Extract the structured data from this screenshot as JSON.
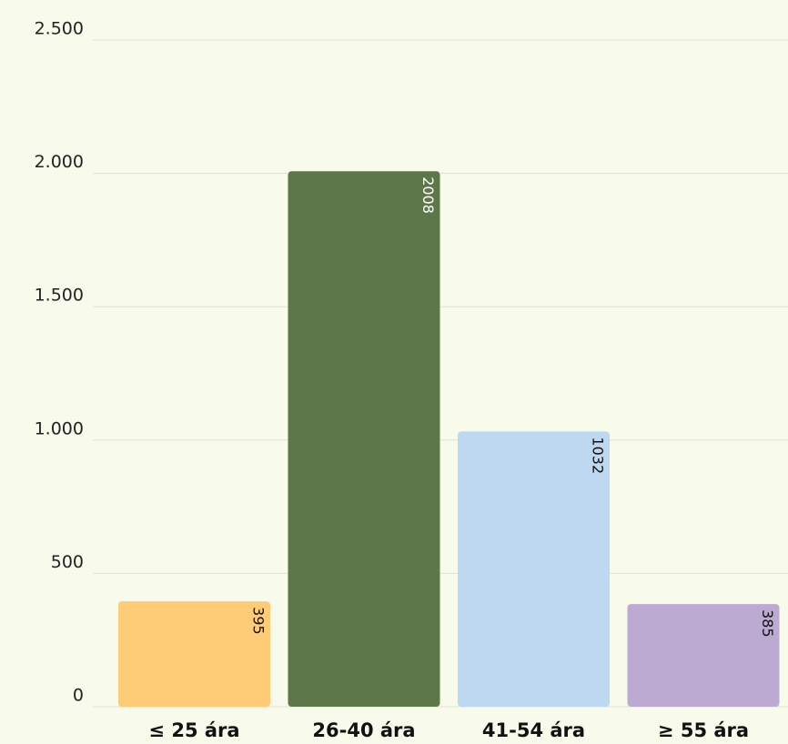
{
  "chart_data": {
    "type": "bar",
    "categories": [
      "≤ 25 ára",
      "26-40 ára",
      "41-54 ára",
      "≥ 55 ára"
    ],
    "values": [
      395,
      2008,
      1032,
      385
    ],
    "colors": [
      "#fecb77",
      "#5e774a",
      "#bdd8f0",
      "#bcaad3"
    ],
    "ylim": [
      0,
      2500
    ],
    "yticks": [
      0,
      500,
      {
        "value": 1000,
        "label": "1.000"
      },
      {
        "value": 1500,
        "label": "1.500"
      },
      {
        "value": 2000,
        "label": "2.000"
      },
      {
        "value": 2500,
        "label": "2.500"
      }
    ],
    "grid": true
  }
}
